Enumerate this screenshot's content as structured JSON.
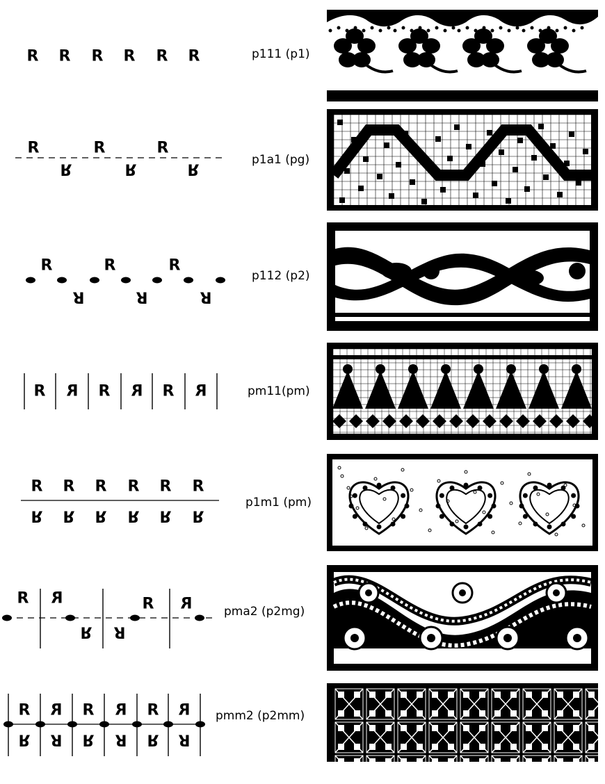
{
  "glyph": "R",
  "colors": {
    "ink": "#000000",
    "paper": "#ffffff"
  },
  "rows": [
    {
      "label": "p111 (p1)",
      "frieze": "floral-border-scalloped"
    },
    {
      "label": "p1a1 (pg)",
      "frieze": "zigzag-crossstitch-border"
    },
    {
      "label": "p112 (p2)",
      "frieze": "twisted-vine-border"
    },
    {
      "label": "pm11(pm)",
      "frieze": "crossstitch-figures-border"
    },
    {
      "label": "p1m1 (pm)",
      "frieze": "heart-motif-border"
    },
    {
      "label": "pma2 (p2mg)",
      "frieze": "flower-wave-border"
    },
    {
      "label": "pmm2 (p2mm)",
      "frieze": "geometric-tile-border"
    }
  ]
}
